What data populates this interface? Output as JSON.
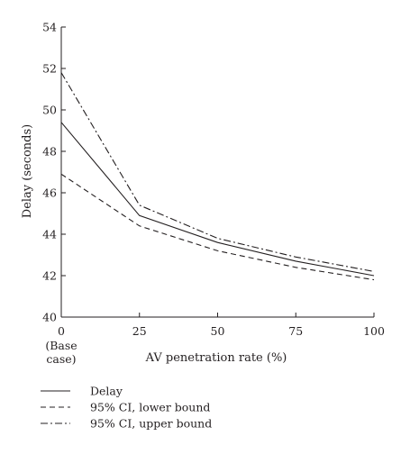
{
  "chart_data": {
    "type": "line",
    "title": "",
    "xlabel": "AV penetration rate (%)",
    "ylabel": "Delay (seconds)",
    "xlim": [
      0,
      100
    ],
    "ylim": [
      40,
      54
    ],
    "x_ticks": [
      0,
      25,
      50,
      75,
      100
    ],
    "x_tick_labels": [
      "0",
      "25",
      "50",
      "75",
      "100"
    ],
    "x_tick_sublabels": [
      "(Base",
      "case)"
    ],
    "y_ticks": [
      40,
      42,
      44,
      46,
      48,
      50,
      52,
      54
    ],
    "y_tick_labels": [
      "40",
      "42",
      "44",
      "46",
      "48",
      "50",
      "52",
      "54"
    ],
    "grid": false,
    "legend_position": "bottom-left",
    "x": [
      0,
      25,
      50,
      75,
      100
    ],
    "series": [
      {
        "name": "Delay",
        "style": "solid",
        "values": [
          49.4,
          44.9,
          43.6,
          42.7,
          42.0
        ]
      },
      {
        "name": "95% CI, lower bound",
        "style": "dashed",
        "values": [
          46.9,
          44.4,
          43.2,
          42.4,
          41.8
        ]
      },
      {
        "name": "95% CI, upper bound",
        "style": "dashdot",
        "values": [
          51.8,
          45.4,
          43.8,
          42.9,
          42.2
        ]
      }
    ],
    "colors": {
      "line": "#231f20",
      "axis": "#231f20"
    }
  }
}
